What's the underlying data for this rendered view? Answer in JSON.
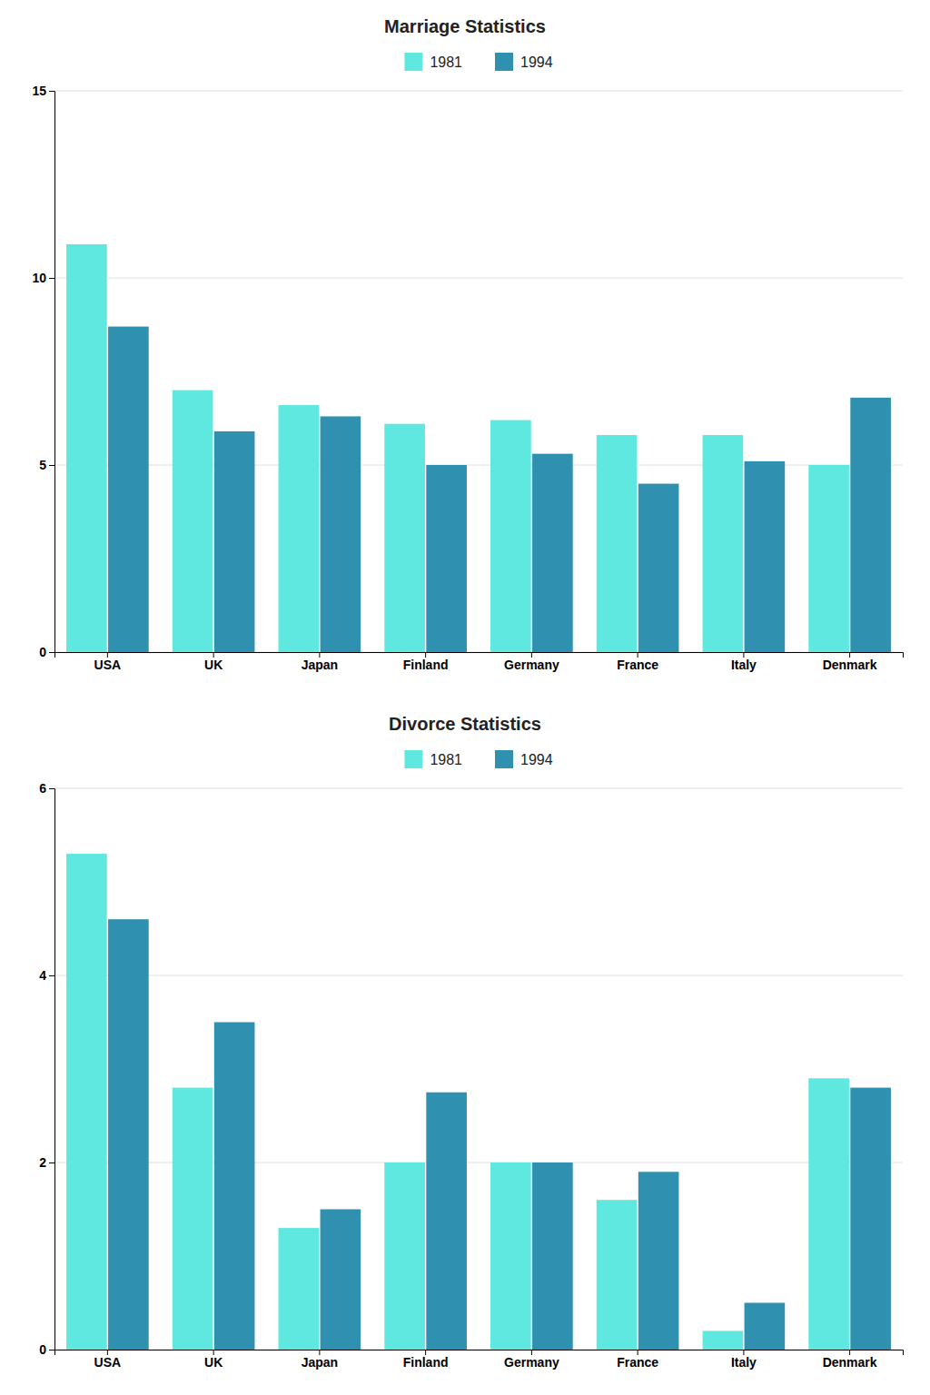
{
  "chart_data": [
    {
      "type": "bar",
      "title": "Marriage Statistics",
      "categories": [
        "USA",
        "UK",
        "Japan",
        "Finland",
        "Germany",
        "France",
        "Italy",
        "Denmark"
      ],
      "series": [
        {
          "name": "1981",
          "color": "#5ee8e0",
          "values": [
            10.9,
            7.0,
            6.6,
            6.1,
            6.2,
            5.8,
            5.8,
            5.0
          ]
        },
        {
          "name": "1994",
          "color": "#3090b0",
          "values": [
            8.7,
            5.9,
            6.3,
            5.0,
            5.3,
            4.5,
            5.1,
            6.8
          ]
        }
      ],
      "ylim": [
        0,
        15
      ],
      "yticks": [
        0,
        5,
        10,
        15
      ],
      "grid": true,
      "legend": "top"
    },
    {
      "type": "bar",
      "title": "Divorce Statistics",
      "categories": [
        "USA",
        "UK",
        "Japan",
        "Finland",
        "Germany",
        "France",
        "Italy",
        "Denmark"
      ],
      "series": [
        {
          "name": "1981",
          "color": "#5ee8e0",
          "values": [
            5.3,
            2.8,
            1.3,
            2.0,
            2.0,
            1.6,
            0.2,
            2.9
          ]
        },
        {
          "name": "1994",
          "color": "#3090b0",
          "values": [
            4.6,
            3.5,
            1.5,
            2.75,
            2.0,
            1.9,
            0.5,
            2.8
          ]
        }
      ],
      "ylim": [
        0,
        6
      ],
      "yticks": [
        0,
        2,
        4,
        6
      ],
      "grid": true,
      "legend": "top"
    }
  ]
}
